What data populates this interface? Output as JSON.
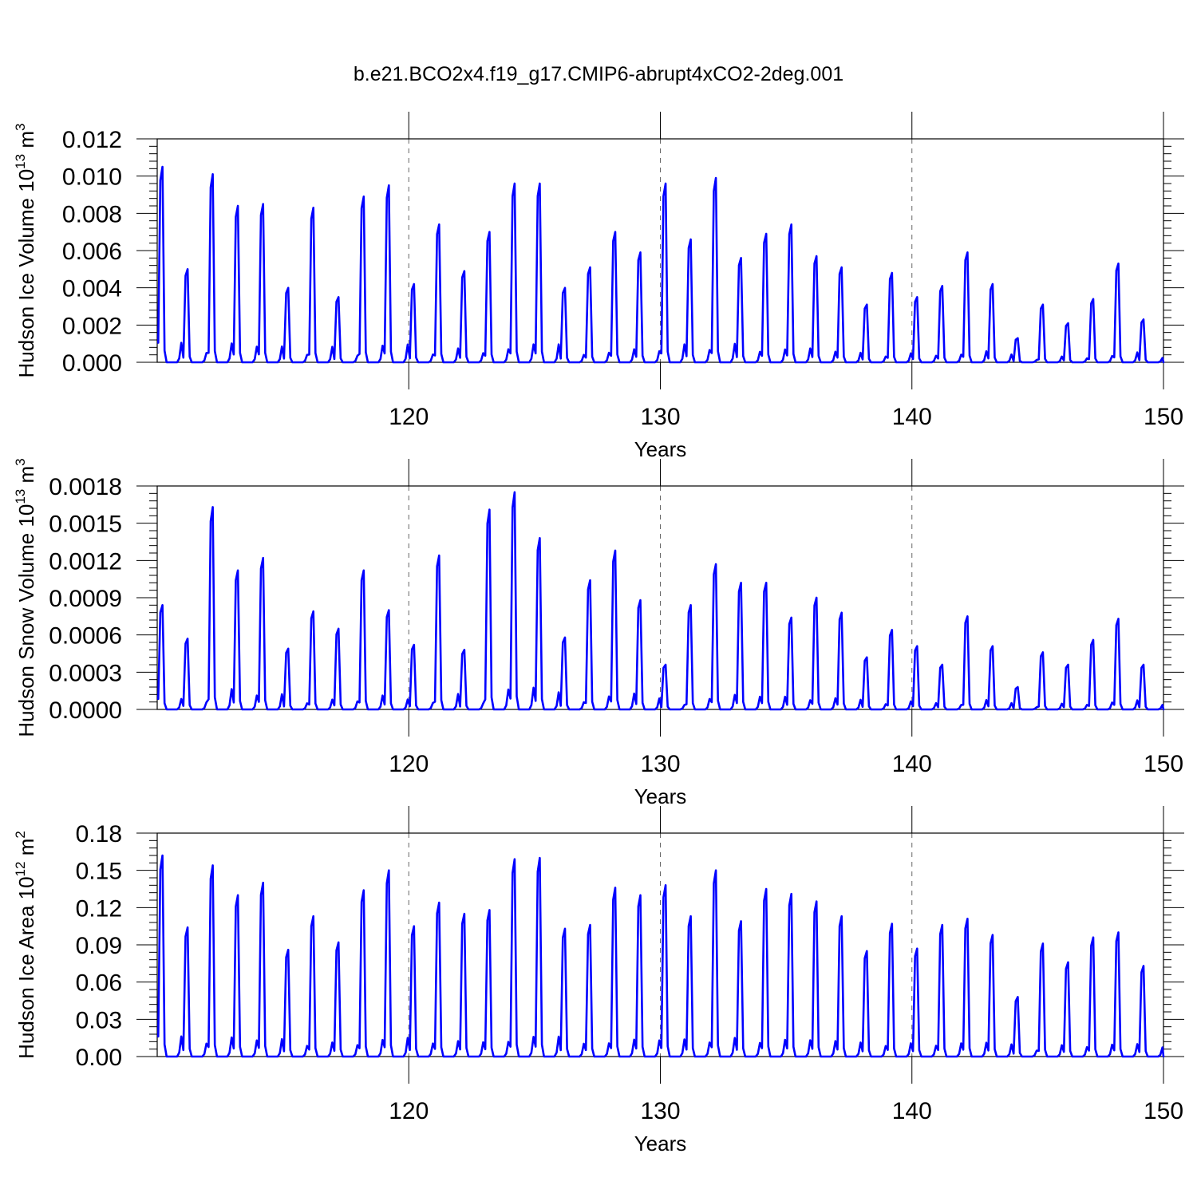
{
  "figure_title": "b.e21.BCO2x4.f19_g17.CMIP6-abrupt4xCO2-2deg.001",
  "colors": {
    "series": "#0000ff",
    "axes": "#000000",
    "grid": "#666666"
  },
  "chart_data": [
    {
      "type": "line",
      "title": "",
      "xlabel": "Years",
      "ylabel_main": "Hudson Ice Volume 10",
      "ylabel_exp": "13",
      "ylabel_unit": " m",
      "ylabel_unit_exp": "3",
      "xlim": [
        110,
        150
      ],
      "xticks": [
        120,
        130,
        140,
        150
      ],
      "xtick_labels": [
        "120",
        "130",
        "140",
        "150"
      ],
      "ylim": [
        0,
        0.012
      ],
      "yticks": [
        0,
        0.002,
        0.004,
        0.006,
        0.008,
        0.01,
        0.012
      ],
      "ytick_labels": [
        "0.000",
        "0.002",
        "0.004",
        "0.006",
        "0.008",
        "0.010",
        "0.012"
      ],
      "grid": "dashed vertical at x ticks",
      "x_start_year": 110,
      "annual_peaks": [
        0.0105,
        0.005,
        0.0101,
        0.0084,
        0.0085,
        0.004,
        0.0083,
        0.0035,
        0.0089,
        0.0095,
        0.0042,
        0.0074,
        0.0049,
        0.007,
        0.0096,
        0.0096,
        0.004,
        0.0051,
        0.007,
        0.0059,
        0.0096,
        0.0066,
        0.0099,
        0.0056,
        0.0069,
        0.0074,
        0.0057,
        0.0051,
        0.0031,
        0.0048,
        0.0035,
        0.0041,
        0.0059,
        0.0042,
        0.0013,
        0.0031,
        0.0021,
        0.0034,
        0.0053,
        0.0023
      ],
      "series": [
        {
          "color": "#0000ff"
        }
      ]
    },
    {
      "type": "line",
      "title": "",
      "xlabel": "Years",
      "ylabel_main": "Hudson Snow Volume 10",
      "ylabel_exp": "13",
      "ylabel_unit": " m",
      "ylabel_unit_exp": "3",
      "xlim": [
        110,
        150
      ],
      "xticks": [
        120,
        130,
        140,
        150
      ],
      "xtick_labels": [
        "120",
        "130",
        "140",
        "150"
      ],
      "ylim": [
        0,
        0.0018
      ],
      "yticks": [
        0,
        0.0003,
        0.0006,
        0.0009,
        0.0012,
        0.0015,
        0.0018
      ],
      "ytick_labels": [
        "0.0000",
        "0.0003",
        "0.0006",
        "0.0009",
        "0.0012",
        "0.0015",
        "0.0018"
      ],
      "grid": "dashed vertical at x ticks",
      "x_start_year": 110,
      "annual_peaks": [
        0.00084,
        0.00057,
        0.00163,
        0.00112,
        0.00122,
        0.00049,
        0.00079,
        0.00065,
        0.00112,
        0.0008,
        0.00052,
        0.00124,
        0.00048,
        0.00161,
        0.00175,
        0.00138,
        0.00058,
        0.00104,
        0.00128,
        0.00088,
        0.00036,
        0.00084,
        0.00117,
        0.00102,
        0.00102,
        0.00074,
        0.0009,
        0.00078,
        0.00042,
        0.00064,
        0.00051,
        0.00036,
        0.00075,
        0.00051,
        0.00018,
        0.00046,
        0.00036,
        0.00056,
        0.00073,
        0.00036
      ],
      "series": [
        {
          "color": "#0000ff"
        }
      ]
    },
    {
      "type": "line",
      "title": "",
      "xlabel": "Years",
      "ylabel_main": "Hudson Ice Area 10",
      "ylabel_exp": "12",
      "ylabel_unit": " m",
      "ylabel_unit_exp": "2",
      "xlim": [
        110,
        150
      ],
      "xticks": [
        120,
        130,
        140,
        150
      ],
      "xtick_labels": [
        "120",
        "130",
        "140",
        "150"
      ],
      "ylim": [
        0,
        0.18
      ],
      "yticks": [
        0,
        0.03,
        0.06,
        0.09,
        0.12,
        0.15,
        0.18
      ],
      "ytick_labels": [
        "0.00",
        "0.03",
        "0.06",
        "0.09",
        "0.12",
        "0.15",
        "0.18"
      ],
      "grid": "dashed vertical at x ticks",
      "x_start_year": 110,
      "annual_peaks": [
        0.162,
        0.104,
        0.154,
        0.13,
        0.14,
        0.086,
        0.113,
        0.092,
        0.134,
        0.15,
        0.105,
        0.124,
        0.115,
        0.118,
        0.159,
        0.16,
        0.103,
        0.106,
        0.136,
        0.13,
        0.138,
        0.113,
        0.15,
        0.109,
        0.135,
        0.131,
        0.125,
        0.113,
        0.085,
        0.107,
        0.087,
        0.106,
        0.111,
        0.098,
        0.048,
        0.091,
        0.076,
        0.096,
        0.1,
        0.073
      ],
      "series": [
        {
          "color": "#0000ff"
        }
      ]
    }
  ]
}
